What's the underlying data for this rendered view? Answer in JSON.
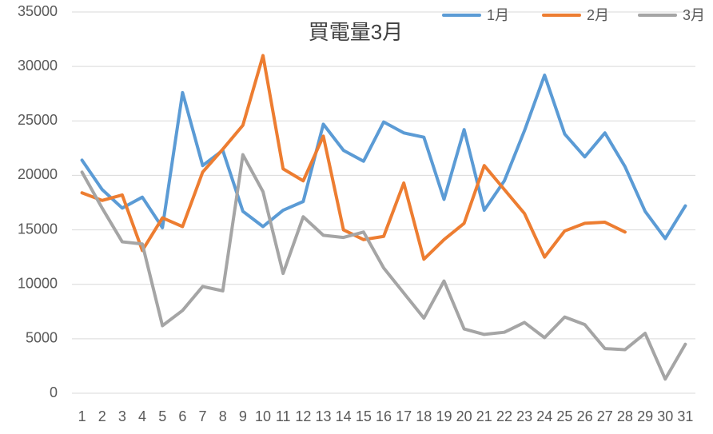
{
  "chart_data": {
    "type": "line",
    "title": "買電量3月",
    "categories": [
      "1",
      "2",
      "3",
      "4",
      "5",
      "6",
      "7",
      "8",
      "9",
      "10",
      "11",
      "12",
      "13",
      "14",
      "15",
      "16",
      "17",
      "18",
      "19",
      "20",
      "21",
      "22",
      "23",
      "24",
      "25",
      "26",
      "27",
      "28",
      "29",
      "30",
      "31"
    ],
    "series": [
      {
        "name": "1月",
        "color": "#5b9bd5",
        "values": [
          21400,
          18700,
          17000,
          18000,
          15200,
          27600,
          20900,
          22300,
          16700,
          15300,
          16800,
          17600,
          24700,
          22300,
          21300,
          24900,
          23900,
          23500,
          17800,
          24200,
          16800,
          19500,
          24100,
          29200,
          23800,
          21700,
          23900,
          20800,
          16700,
          14200,
          17200
        ]
      },
      {
        "name": "2月",
        "color": "#ed7d31",
        "values": [
          18400,
          17700,
          18200,
          13100,
          16100,
          15300,
          20300,
          22400,
          24600,
          31000,
          20600,
          19500,
          23600,
          15000,
          14100,
          14400,
          19300,
          12300,
          14100,
          15600,
          20900,
          18700,
          16500,
          12500,
          14900,
          15600,
          15700,
          14800,
          null,
          null,
          null
        ]
      },
      {
        "name": "3月",
        "color": "#a5a5a5",
        "values": [
          20300,
          17000,
          13900,
          13700,
          6200,
          7600,
          9800,
          9400,
          21900,
          18500,
          11000,
          16200,
          14500,
          14300,
          14800,
          11500,
          9200,
          6900,
          10300,
          5900,
          5400,
          5600,
          6500,
          5100,
          7000,
          6300,
          4100,
          4000,
          5500,
          1300,
          4500
        ]
      }
    ],
    "ylim": [
      0,
      35000
    ],
    "yticks": [
      0,
      5000,
      10000,
      15000,
      20000,
      25000,
      30000,
      35000
    ],
    "grid": true,
    "legend": "top-right"
  }
}
